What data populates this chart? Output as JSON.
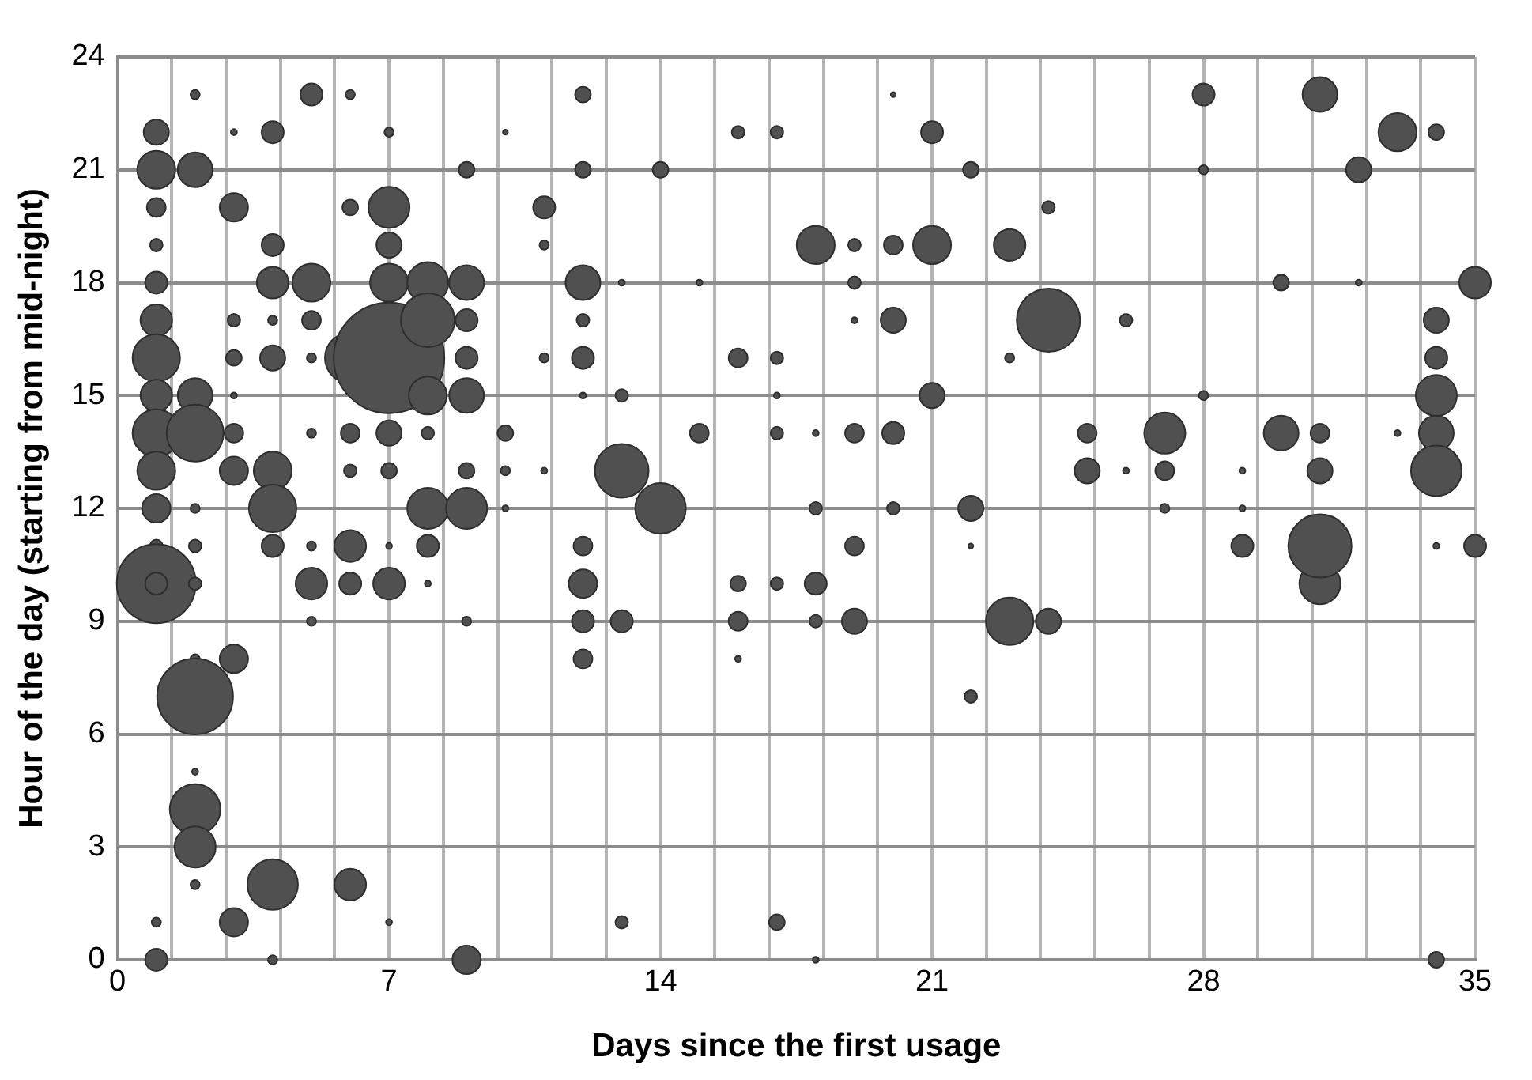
{
  "chart_data": {
    "type": "bubble",
    "xlabel": "Days since the first usage",
    "ylabel": "Hour of the day (starting from mid-night)",
    "xlim": [
      0,
      35
    ],
    "xticks": [
      0,
      {
        "value": 1.4,
        "label": null
      },
      {
        "value": 2.8,
        "label": null
      },
      {
        "value": 4.2,
        "label": null
      },
      {
        "value": 5.6,
        "label": null
      },
      7,
      {
        "value": 8.4,
        "label": null
      },
      {
        "value": 9.8,
        "label": null
      },
      {
        "value": 11.2,
        "label": null
      },
      {
        "value": 12.6,
        "label": null
      },
      14,
      {
        "value": 15.4,
        "label": null
      },
      {
        "value": 16.8,
        "label": null
      },
      {
        "value": 18.2,
        "label": null
      },
      {
        "value": 19.6,
        "label": null
      },
      21,
      {
        "value": 22.4,
        "label": null
      },
      {
        "value": 23.8,
        "label": null
      },
      {
        "value": 25.2,
        "label": null
      },
      {
        "value": 26.6,
        "label": null
      },
      28,
      {
        "value": 29.4,
        "label": null
      },
      {
        "value": 30.8,
        "label": null
      },
      {
        "value": 32.2,
        "label": null
      },
      {
        "value": 33.6,
        "label": null
      },
      35
    ],
    "ylim": [
      0,
      24
    ],
    "yticks": [
      0,
      3,
      6,
      9,
      12,
      15,
      18,
      21,
      24
    ],
    "grid": true,
    "legend": false,
    "series": [
      {
        "color": "#505050",
        "x": [
          1,
          1,
          1,
          1,
          1,
          1,
          1,
          1,
          1,
          1,
          1,
          1,
          1,
          1,
          1,
          1,
          2,
          2,
          2,
          2,
          2,
          2,
          2,
          2,
          2,
          2,
          2,
          2,
          2,
          3,
          3,
          3,
          3,
          3,
          3,
          3,
          3,
          3,
          4,
          4,
          4,
          4,
          4,
          4,
          4,
          4,
          4,
          4,
          5,
          5,
          5,
          5,
          5,
          5,
          5,
          5,
          6,
          6,
          6,
          6,
          6,
          6,
          6,
          6,
          7,
          7,
          7,
          7,
          7,
          7,
          7,
          7,
          7,
          7,
          8,
          8,
          8,
          8,
          8,
          8,
          8,
          9,
          9,
          9,
          9,
          9,
          9,
          9,
          9,
          9,
          10,
          10,
          10,
          10,
          11,
          11,
          11,
          11,
          12,
          12,
          12,
          12,
          12,
          12,
          12,
          12,
          12,
          12,
          13,
          13,
          13,
          13,
          13,
          14,
          14,
          15,
          15,
          16,
          16,
          16,
          16,
          16,
          17,
          17,
          17,
          17,
          17,
          17,
          18,
          18,
          18,
          18,
          18,
          18,
          19,
          19,
          19,
          19,
          19,
          19,
          20,
          20,
          20,
          20,
          20,
          21,
          21,
          21,
          22,
          22,
          22,
          22,
          23,
          23,
          23,
          24,
          24,
          24,
          25,
          25,
          26,
          26,
          27,
          27,
          27,
          28,
          28,
          28,
          29,
          29,
          29,
          30,
          30,
          31,
          31,
          31,
          31,
          31,
          32,
          32,
          33,
          33,
          34,
          34,
          34,
          34,
          34,
          34,
          34,
          34,
          35,
          35
        ],
        "values": [
          22,
          21,
          20,
          19,
          18,
          17,
          16,
          15,
          14,
          13,
          12,
          11,
          10,
          10,
          1,
          0,
          23,
          21,
          15,
          14,
          12,
          11,
          10,
          8,
          7,
          5,
          4,
          3,
          2,
          22,
          20,
          17,
          16,
          15,
          14,
          13,
          8,
          1,
          22,
          19,
          18,
          17,
          16,
          13,
          12,
          11,
          2,
          0,
          23,
          18,
          17,
          16,
          14,
          11,
          10,
          9,
          23,
          20,
          16,
          14,
          13,
          11,
          10,
          2,
          22,
          20,
          19,
          18,
          16,
          14,
          13,
          11,
          10,
          1,
          18,
          17,
          15,
          14,
          12,
          11,
          10,
          21,
          18,
          17,
          16,
          15,
          13,
          12,
          9,
          0,
          22,
          14,
          13,
          12,
          20,
          19,
          16,
          13,
          23,
          21,
          18,
          17,
          16,
          15,
          11,
          10,
          9,
          8,
          18,
          15,
          13,
          9,
          1,
          21,
          12,
          18,
          14,
          22,
          16,
          10,
          9,
          8,
          22,
          16,
          15,
          14,
          10,
          1,
          19,
          14,
          12,
          10,
          9,
          0,
          19,
          18,
          17,
          14,
          11,
          9,
          23,
          19,
          17,
          14,
          12,
          22,
          19,
          15,
          21,
          12,
          11,
          7,
          19,
          16,
          9,
          20,
          17,
          9,
          14,
          13,
          17,
          13,
          14,
          13,
          12,
          23,
          21,
          15,
          13,
          12,
          11,
          18,
          14,
          23,
          14,
          13,
          10,
          11,
          21,
          18,
          22,
          14,
          22,
          17,
          16,
          15,
          14,
          13,
          11,
          0,
          18,
          11
        ],
        "sizes": [
          0.052,
          0.118,
          0.029,
          0.013,
          0.04,
          0.082,
          0.184,
          0.082,
          0.184,
          0.118,
          0.066,
          0.013,
          0.51,
          0.04,
          0.007,
          0.04,
          0.007,
          0.099,
          0.099,
          0.264,
          0.007,
          0.013,
          0.013,
          0.007,
          0.47,
          0.003,
          0.209,
          0.138,
          0.007,
          0.003,
          0.066,
          0.013,
          0.02,
          0.003,
          0.029,
          0.066,
          0.066,
          0.066,
          0.04,
          0.04,
          0.082,
          0.007,
          0.052,
          0.118,
          0.184,
          0.04,
          0.209,
          0.007,
          0.04,
          0.118,
          0.029,
          0.007,
          0.007,
          0.007,
          0.082,
          0.007,
          0.007,
          0.02,
          0.209,
          0.029,
          0.013,
          0.082,
          0.04,
          0.082,
          0.007,
          0.138,
          0.052,
          0.118,
          1,
          0.052,
          0.02,
          0.003,
          0.082,
          0.003,
          0.138,
          0.236,
          0.118,
          0.013,
          0.138,
          0.04,
          0.003,
          0.02,
          0.099,
          0.04,
          0.04,
          0.099,
          0.02,
          0.138,
          0.007,
          0.066,
          0.002,
          0.02,
          0.007,
          0.003,
          0.04,
          0.007,
          0.007,
          0.003,
          0.02,
          0.02,
          0.099,
          0.013,
          0.04,
          0.003,
          0.029,
          0.066,
          0.04,
          0.029,
          0.003,
          0.013,
          0.236,
          0.04,
          0.013,
          0.02,
          0.209,
          0.003,
          0.029,
          0.013,
          0.029,
          0.02,
          0.029,
          0.003,
          0.013,
          0.013,
          0.003,
          0.013,
          0.013,
          0.02,
          0.118,
          0.003,
          0.013,
          0.04,
          0.013,
          0.003,
          0.013,
          0.013,
          0.003,
          0.029,
          0.029,
          0.052,
          0.002,
          0.029,
          0.052,
          0.04,
          0.013,
          0.04,
          0.118,
          0.052,
          0.02,
          0.052,
          0.002,
          0.013,
          0.082,
          0.007,
          0.184,
          0.013,
          0.327,
          0.052,
          0.029,
          0.052,
          0.013,
          0.003,
          0.138,
          0.029,
          0.007,
          0.04,
          0.007,
          0.007,
          0.003,
          0.003,
          0.04,
          0.02,
          0.099,
          0.099,
          0.029,
          0.052,
          0.138,
          0.327,
          0.052,
          0.003,
          0.118,
          0.003,
          0.02,
          0.052,
          0.04,
          0.138,
          0.099,
          0.209,
          0.003,
          0.02,
          0.082,
          0.04
        ]
      }
    ]
  }
}
